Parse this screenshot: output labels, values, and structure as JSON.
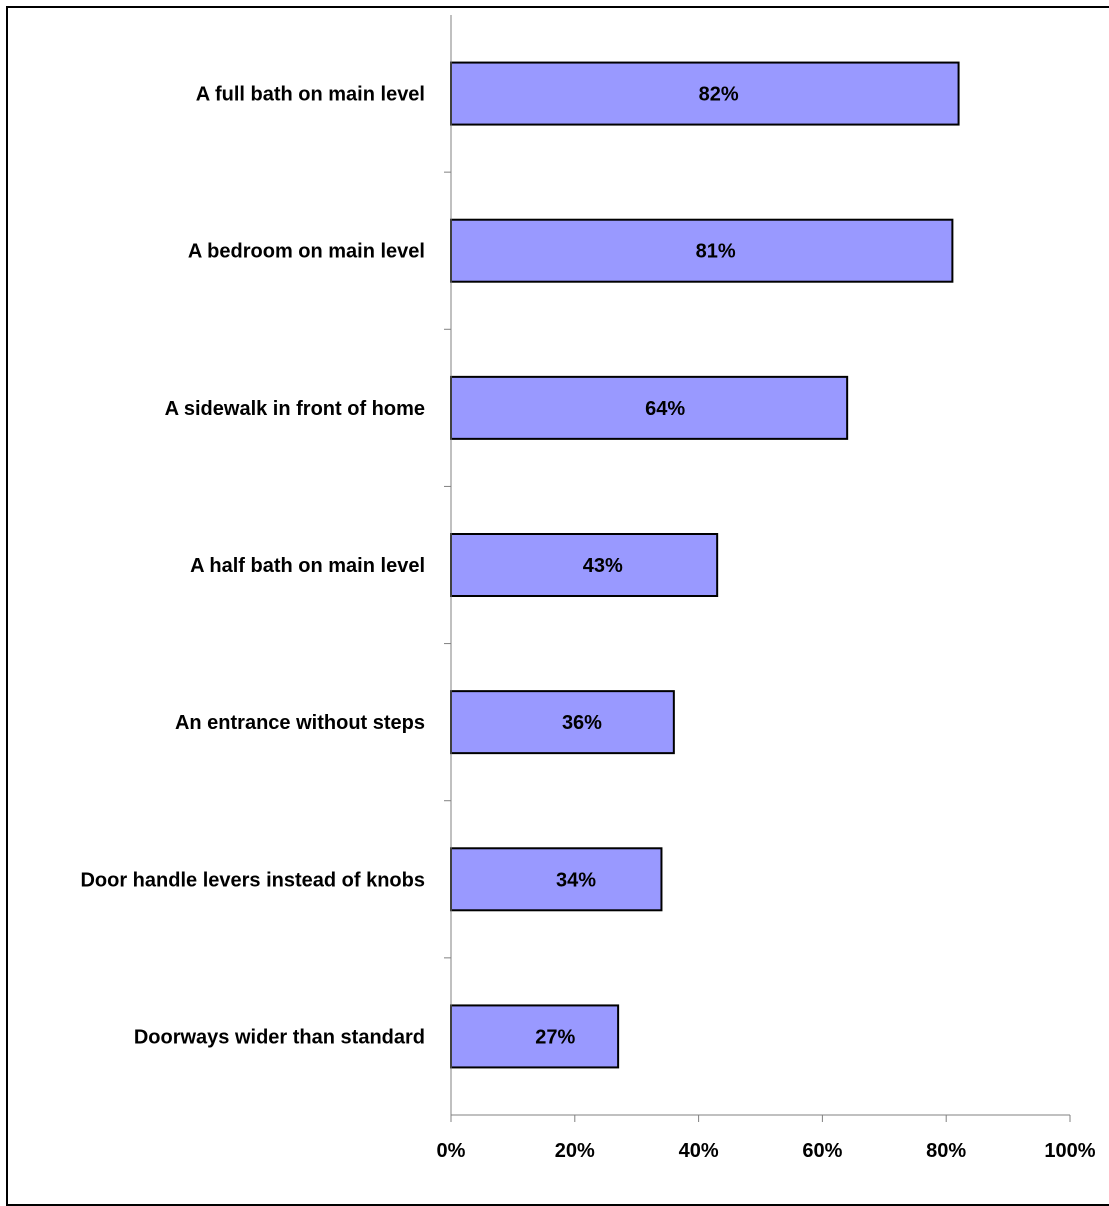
{
  "chart_data": {
    "type": "bar",
    "orientation": "horizontal",
    "categories": [
      "A full bath on main level",
      "A bedroom on main level",
      "A sidewalk in front of home",
      "A half bath on main level",
      "An entrance without steps",
      "Door handle levers instead of knobs",
      "Doorways wider than standard"
    ],
    "values": [
      82,
      81,
      64,
      43,
      36,
      34,
      27
    ],
    "value_labels": [
      "82%",
      "81%",
      "64%",
      "43%",
      "36%",
      "34%",
      "27%"
    ],
    "x_ticks": [
      0,
      20,
      40,
      60,
      80,
      100
    ],
    "x_tick_labels": [
      "0%",
      "20%",
      "40%",
      "60%",
      "80%",
      "100%"
    ],
    "xlim": [
      0,
      100
    ],
    "title": "",
    "xlabel": "",
    "ylabel": "",
    "grid": false,
    "legend": "none",
    "bar_color": "#9999ff",
    "bar_border_color": "#000000"
  }
}
